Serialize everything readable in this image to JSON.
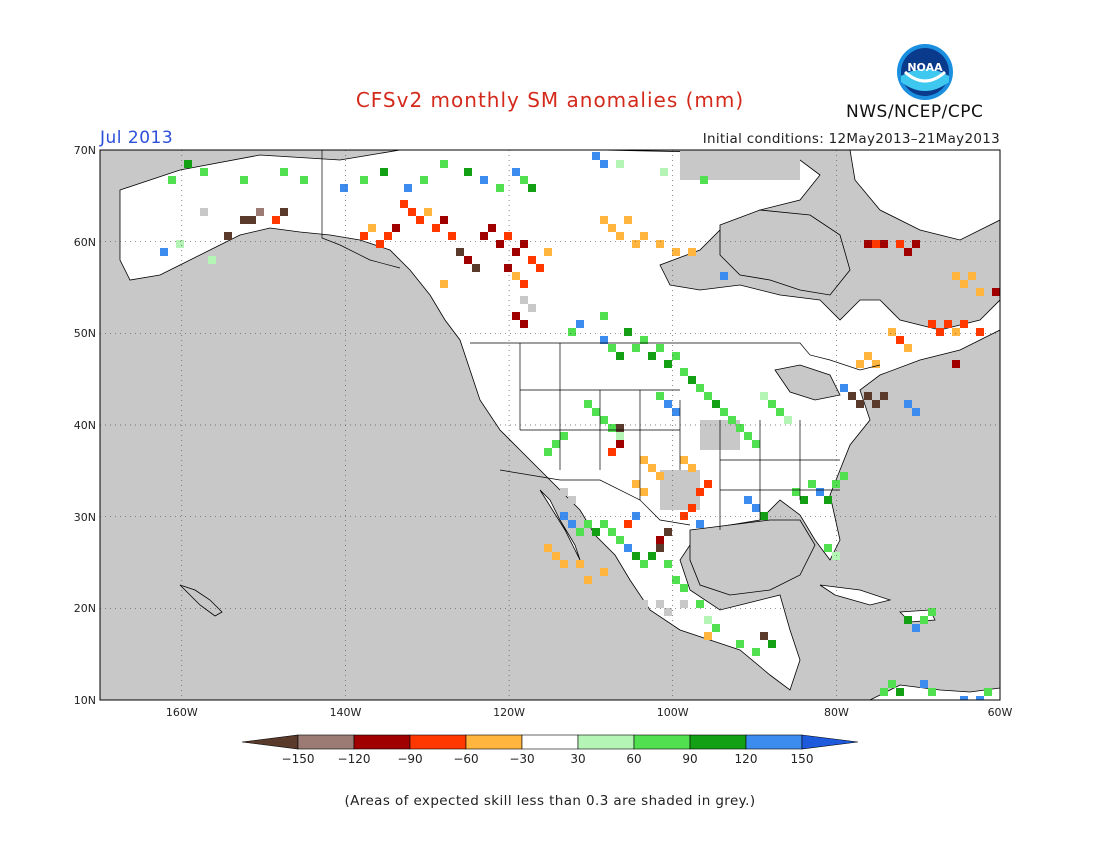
{
  "header": {
    "title": "CFSv2 monthly SM anomalies (mm)",
    "month": "Jul 2013",
    "initial_conditions": "Initial conditions: 12May2013–21May2013",
    "agency": "NWS/NCEP/CPC",
    "logo_text": "NOAA"
  },
  "map": {
    "projection": "equirectangular",
    "extent": {
      "lon_min": -170,
      "lon_max": -60,
      "lat_min": 10,
      "lat_max": 70
    },
    "lat_labels": [
      "10N",
      "20N",
      "30N",
      "40N",
      "50N",
      "60N",
      "70N"
    ],
    "lon_labels": [
      "160W",
      "140W",
      "120W",
      "100W",
      "80W",
      "60W"
    ],
    "colors": {
      "ocean_and_low_skill": "#c8c8c8",
      "land_neutral": "#ffffff",
      "borders": "#000000"
    }
  },
  "colorbar": {
    "labels": [
      "−150",
      "−120",
      "−90",
      "−60",
      "−30",
      "30",
      "60",
      "90",
      "120",
      "150"
    ],
    "colors": [
      "#5a3a2a",
      "#9b7b73",
      "#a00000",
      "#ff3800",
      "#ffb53e",
      "#ffffff",
      "#b4f4b4",
      "#50e050",
      "#14a014",
      "#3c8cf0",
      "#1e5adc"
    ]
  },
  "footnote": "(Areas of expected skill less than 0.3 are shaded in grey.)"
}
